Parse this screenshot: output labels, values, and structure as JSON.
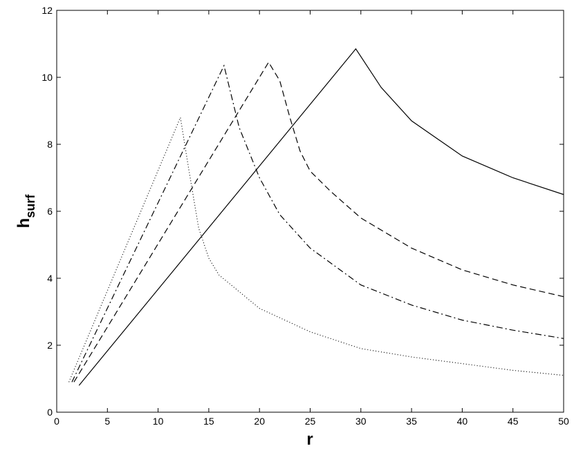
{
  "chart_data": {
    "type": "line",
    "xlabel": "r",
    "ylabel": {
      "base": "h",
      "subscript": "surf"
    },
    "xlim": [
      0,
      50
    ],
    "xticks": [
      0,
      5,
      10,
      15,
      20,
      25,
      30,
      35,
      40,
      45,
      50
    ],
    "ylim": [
      0,
      12
    ],
    "yticks": [
      0,
      2,
      4,
      6,
      8,
      10,
      12
    ],
    "grid": false,
    "series": [
      {
        "color": "#000000",
        "dash": "solid",
        "x": [
          2.2,
          29.5,
          32,
          35,
          40,
          45,
          50
        ],
        "values": [
          0.8,
          10.85,
          9.7,
          8.7,
          7.65,
          7.0,
          6.5
        ]
      },
      {
        "color": "#000000",
        "dash": "dashed",
        "x": [
          1.7,
          20.9,
          22,
          23,
          24,
          25,
          27,
          30,
          35,
          40,
          45,
          50
        ],
        "values": [
          0.9,
          10.45,
          9.9,
          8.8,
          7.8,
          7.2,
          6.6,
          5.8,
          4.9,
          4.25,
          3.8,
          3.45
        ]
      },
      {
        "color": "#000000",
        "dash": "dashdot",
        "x": [
          1.5,
          16.5,
          18,
          20,
          22,
          25,
          30,
          35,
          40,
          45,
          50
        ],
        "values": [
          0.9,
          10.35,
          8.5,
          7.0,
          5.9,
          4.9,
          3.8,
          3.2,
          2.75,
          2.45,
          2.2
        ]
      },
      {
        "color": "#000000",
        "dash": "dotted",
        "x": [
          1.2,
          12.2,
          13,
          14,
          15,
          16,
          20,
          25,
          30,
          35,
          40,
          45,
          50
        ],
        "values": [
          0.9,
          8.8,
          7.3,
          5.5,
          4.6,
          4.1,
          3.1,
          2.4,
          1.9,
          1.65,
          1.45,
          1.25,
          1.1
        ]
      }
    ]
  }
}
